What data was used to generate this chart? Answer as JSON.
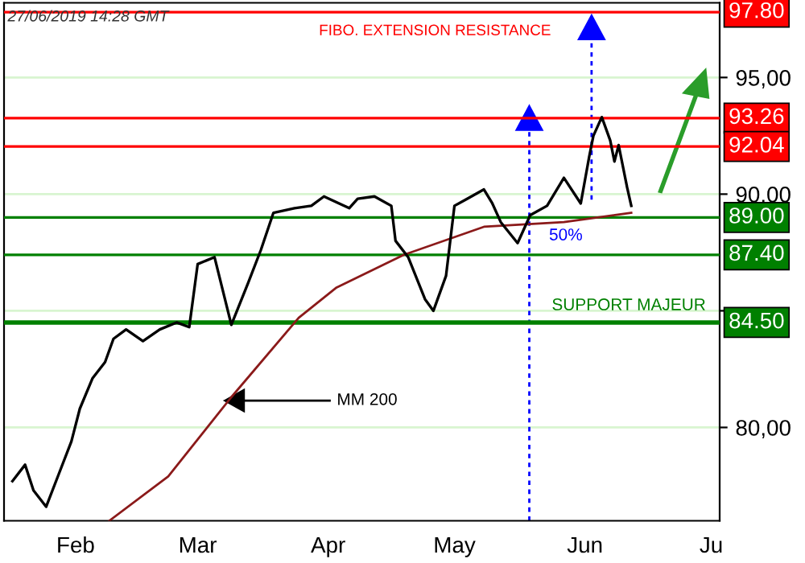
{
  "chart_data": {
    "type": "line",
    "annotations": [
      "27/06/2019 14:28 GMT",
      "FIBO. EXTENSION RESISTANCE",
      "50%",
      "SUPPORT MAJEUR",
      "MM 200"
    ],
    "series": [
      {
        "color": "#000000",
        "x": [
          "2019-01-31",
          "2019-02-03",
          "2019-02-05",
          "2019-02-08",
          "2019-02-11",
          "2019-02-14",
          "2019-02-16",
          "2019-02-19",
          "2019-02-22",
          "2019-02-24",
          "2019-02-27",
          "2019-03-03",
          "2019-03-07",
          "2019-03-11",
          "2019-03-14",
          "2019-03-16",
          "2019-03-20",
          "2019-03-24",
          "2019-03-28",
          "2019-03-31",
          "2019-04-03",
          "2019-04-08",
          "2019-04-12",
          "2019-04-15",
          "2019-04-21",
          "2019-04-23",
          "2019-04-27",
          "2019-05-01",
          "2019-05-02",
          "2019-05-05",
          "2019-05-09",
          "2019-05-11",
          "2019-05-14",
          "2019-05-16",
          "2019-05-19",
          "2019-05-23",
          "2019-05-25",
          "2019-05-27",
          "2019-05-31",
          "2019-06-03",
          "2019-06-07",
          "2019-06-11",
          "2019-06-15",
          "2019-06-17",
          "2019-06-18",
          "2019-06-20",
          "2019-06-22",
          "2019-06-23",
          "2019-06-24",
          "2019-06-26",
          "2019-06-27"
        ],
        "values": [
          77.7,
          78.4,
          77.3,
          76.6,
          78.0,
          79.4,
          80.8,
          82.1,
          82.8,
          83.8,
          84.2,
          83.7,
          84.2,
          84.5,
          84.3,
          87.0,
          87.3,
          84.4,
          86.2,
          87.6,
          89.2,
          89.4,
          89.5,
          89.9,
          89.4,
          89.8,
          89.9,
          89.5,
          88.0,
          87.3,
          85.5,
          85.0,
          86.5,
          89.5,
          89.8,
          90.2,
          89.6,
          88.8,
          87.9,
          89.1,
          89.5,
          90.7,
          89.6,
          91.6,
          92.5,
          93.3,
          92.3,
          91.4,
          92.1,
          90.3,
          89.5
        ]
      },
      {
        "color": "#8b1a1a",
        "x": [
          "2019-02-23",
          "2019-03-09",
          "2019-03-24",
          "2019-04-09",
          "2019-04-18",
          "2019-05-04",
          "2019-05-23",
          "2019-06-11",
          "2019-06-27"
        ],
        "values": [
          76.0,
          77.9,
          81.3,
          84.7,
          86.0,
          87.4,
          88.6,
          88.8,
          89.2
        ]
      }
    ],
    "xlim": [
      "2019-01-29",
      "2019-07-18"
    ],
    "xticks": [
      {
        "value": "2019-02-15",
        "label": "Feb"
      },
      {
        "value": "2019-03-16",
        "label": "Mar"
      },
      {
        "value": "2019-04-16",
        "label": "Apr"
      },
      {
        "value": "2019-05-16",
        "label": "May"
      },
      {
        "value": "2019-06-16",
        "label": "Jun"
      },
      {
        "value": "2019-07-16",
        "label": "Ju"
      }
    ],
    "ylim": [
      76.0,
      98.2
    ],
    "yticks": [
      {
        "value": 80,
        "label": "80,00"
      },
      {
        "value": 85,
        "label": null
      },
      {
        "value": 90,
        "label": "90,00"
      },
      {
        "value": 95,
        "label": "95,00"
      }
    ],
    "ref_lines": [
      {
        "axis": "y",
        "value": 97.8,
        "label": "97.80",
        "color": "#ff0000"
      },
      {
        "axis": "y",
        "value": 93.26,
        "label": "93.26",
        "color": "#ff0000"
      },
      {
        "axis": "y",
        "value": 92.04,
        "label": "92.04",
        "color": "#ff0000"
      },
      {
        "axis": "y",
        "value": 89.0,
        "label": "89.00",
        "color": "#008000"
      },
      {
        "axis": "y",
        "value": 87.4,
        "label": "87.40",
        "color": "#008000"
      },
      {
        "axis": "y",
        "value": 84.5,
        "label": "84.50",
        "color": "#008000"
      }
    ],
    "grid": "y",
    "marker": "none",
    "line_style": "solid"
  }
}
